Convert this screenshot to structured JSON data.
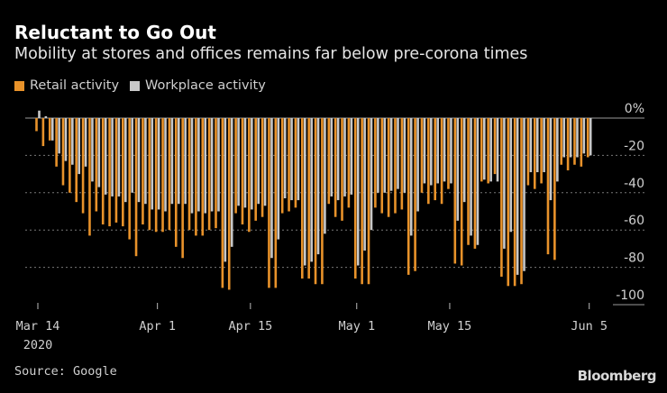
{
  "chart_data": {
    "type": "bar",
    "title": "Reluctant to Go Out",
    "subtitle": "Mobility at stores and offices remains far below pre-corona times",
    "xlabel": "",
    "ylabel": "",
    "ylim": [
      -100,
      0
    ],
    "yticks": [
      {
        "value": 0,
        "label": "0%"
      },
      {
        "value": -20,
        "label": "-20"
      },
      {
        "value": -40,
        "label": "-40"
      },
      {
        "value": -60,
        "label": "-60"
      },
      {
        "value": -80,
        "label": "-80"
      },
      {
        "value": -100,
        "label": "-100"
      }
    ],
    "grid": true,
    "legend_position": "top-left",
    "start_date": "2020-03-14",
    "end_date": "2020-06-05",
    "xticks": [
      {
        "day_index": 0,
        "label": "Mar 14",
        "sublabel": "2020"
      },
      {
        "day_index": 18,
        "label": "Apr 1"
      },
      {
        "day_index": 32,
        "label": "Apr 15"
      },
      {
        "day_index": 48,
        "label": "May 1"
      },
      {
        "day_index": 62,
        "label": "May 15"
      },
      {
        "day_index": 83,
        "label": "Jun 5"
      }
    ],
    "series": [
      {
        "name": "Retail activity",
        "color": "#e8922a",
        "values": [
          -7,
          -15,
          -12,
          -26,
          -36,
          -40,
          -45,
          -51,
          -63,
          -50,
          -57,
          -58,
          -56,
          -58,
          -65,
          -74,
          -57,
          -60,
          -61,
          -61,
          -60,
          -69,
          -75,
          -60,
          -63,
          -63,
          -60,
          -59,
          -91,
          -92,
          -51,
          -57,
          -61,
          -55,
          -53,
          -91,
          -91,
          -51,
          -50,
          -48,
          -86,
          -86,
          -89,
          -89,
          -46,
          -53,
          -55,
          -48,
          -86,
          -89,
          -89,
          -48,
          -51,
          -53,
          -51,
          -49,
          -84,
          -82,
          -40,
          -46,
          -44,
          -46,
          -38,
          -78,
          -79,
          -68,
          -70,
          -34,
          -35,
          -30,
          -85,
          -90,
          -90,
          -89,
          -36,
          -38,
          -35,
          -73,
          -76,
          -25,
          -28,
          -25,
          -26,
          -21
        ]
      },
      {
        "name": "Workplace activity",
        "color": "#c8c8c8",
        "values": [
          4,
          1,
          -12,
          -19,
          -23,
          -25,
          -30,
          -26,
          -34,
          -37,
          -41,
          -42,
          -42,
          -45,
          -40,
          -45,
          -46,
          -49,
          -49,
          -50,
          -46,
          -46,
          -46,
          -51,
          -50,
          -51,
          -50,
          -50,
          -77,
          -69,
          -47,
          -48,
          -49,
          -46,
          -47,
          -75,
          -65,
          -43,
          -44,
          -44,
          -79,
          -77,
          -73,
          -62,
          -42,
          -44,
          -42,
          -41,
          -79,
          -71,
          -60,
          -40,
          -40,
          -39,
          -38,
          -40,
          -63,
          -50,
          -35,
          -36,
          -35,
          -34,
          -35,
          -55,
          -45,
          -63,
          -68,
          -33,
          -34,
          -34,
          -70,
          -61,
          -84,
          -82,
          -29,
          -29,
          -29,
          -44,
          -34,
          -21,
          -21,
          -21,
          -19,
          -20
        ]
      }
    ]
  },
  "source": "Source: Google",
  "brand": "Bloomberg"
}
